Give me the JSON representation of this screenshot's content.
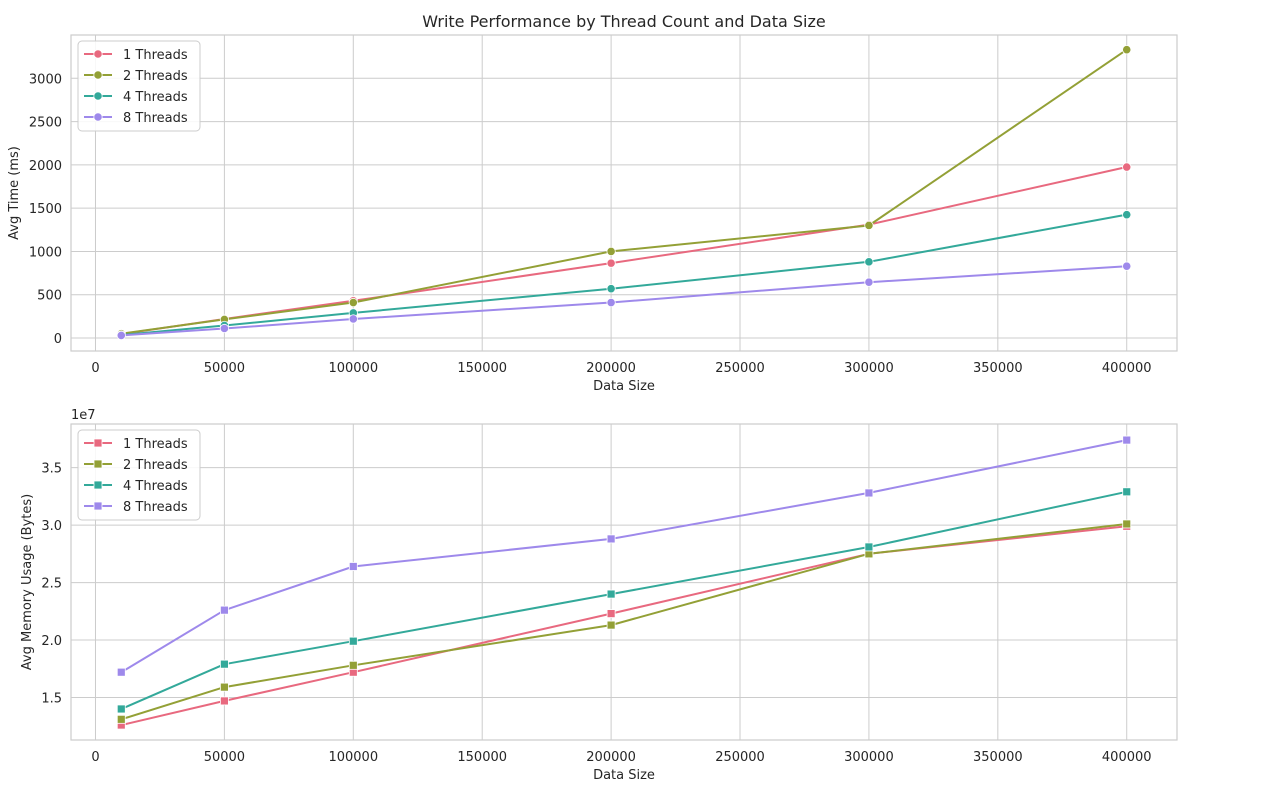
{
  "figure": {
    "title": "Write Performance by Thread Count and Data Size"
  },
  "colors": {
    "1 Threads": "#e8697f",
    "2 Threads": "#93a036",
    "4 Threads": "#33a99a",
    "8 Threads": "#9e89eb",
    "grid": "#cccccc",
    "frame": "#cccccc"
  },
  "chart_data": [
    {
      "type": "line",
      "title": "Write Performance by Thread Count and Data Size",
      "xlabel": "Data Size",
      "ylabel": "Avg Time (ms)",
      "marker": "circle",
      "x": [
        10000,
        50000,
        100000,
        200000,
        300000,
        400000
      ],
      "xlim": [
        -9500,
        419500
      ],
      "ylim": [
        -150,
        3500
      ],
      "xticks": [
        0,
        50000,
        100000,
        150000,
        200000,
        250000,
        300000,
        350000,
        400000
      ],
      "yticks": [
        0,
        500,
        1000,
        1500,
        2000,
        2500,
        3000
      ],
      "grid": true,
      "legend_position": "upper-left",
      "series": [
        {
          "name": "1 Threads",
          "values": [
            45,
            220,
            430,
            865,
            1310,
            1975
          ]
        },
        {
          "name": "2 Threads",
          "values": [
            50,
            215,
            410,
            1000,
            1300,
            3330
          ]
        },
        {
          "name": "4 Threads",
          "values": [
            35,
            145,
            290,
            570,
            880,
            1425
          ]
        },
        {
          "name": "8 Threads",
          "values": [
            30,
            110,
            220,
            410,
            645,
            830
          ]
        }
      ]
    },
    {
      "type": "line",
      "title": "",
      "xlabel": "Data Size",
      "ylabel": "Avg Memory Usage (Bytes)",
      "marker": "square",
      "y_offset_label": "1e7",
      "x": [
        10000,
        50000,
        100000,
        200000,
        300000,
        400000
      ],
      "xlim": [
        -9500,
        419500
      ],
      "ylim": [
        11300000,
        38800000
      ],
      "xticks": [
        0,
        50000,
        100000,
        150000,
        200000,
        250000,
        300000,
        350000,
        400000
      ],
      "yticks": [
        15000000,
        20000000,
        25000000,
        30000000,
        35000000
      ],
      "ytick_labels": [
        "1.5",
        "2.0",
        "2.5",
        "3.0",
        "3.5"
      ],
      "grid": true,
      "legend_position": "upper-left",
      "series": [
        {
          "name": "1 Threads",
          "values": [
            12600000,
            14700000,
            17200000,
            22300000,
            27500000,
            29900000
          ]
        },
        {
          "name": "2 Threads",
          "values": [
            13100000,
            15900000,
            17800000,
            21300000,
            27500000,
            30100000
          ]
        },
        {
          "name": "4 Threads",
          "values": [
            14000000,
            17900000,
            19900000,
            24000000,
            28100000,
            32900000
          ]
        },
        {
          "name": "8 Threads",
          "values": [
            17200000,
            22600000,
            26400000,
            28800000,
            32800000,
            37400000
          ]
        }
      ]
    }
  ]
}
